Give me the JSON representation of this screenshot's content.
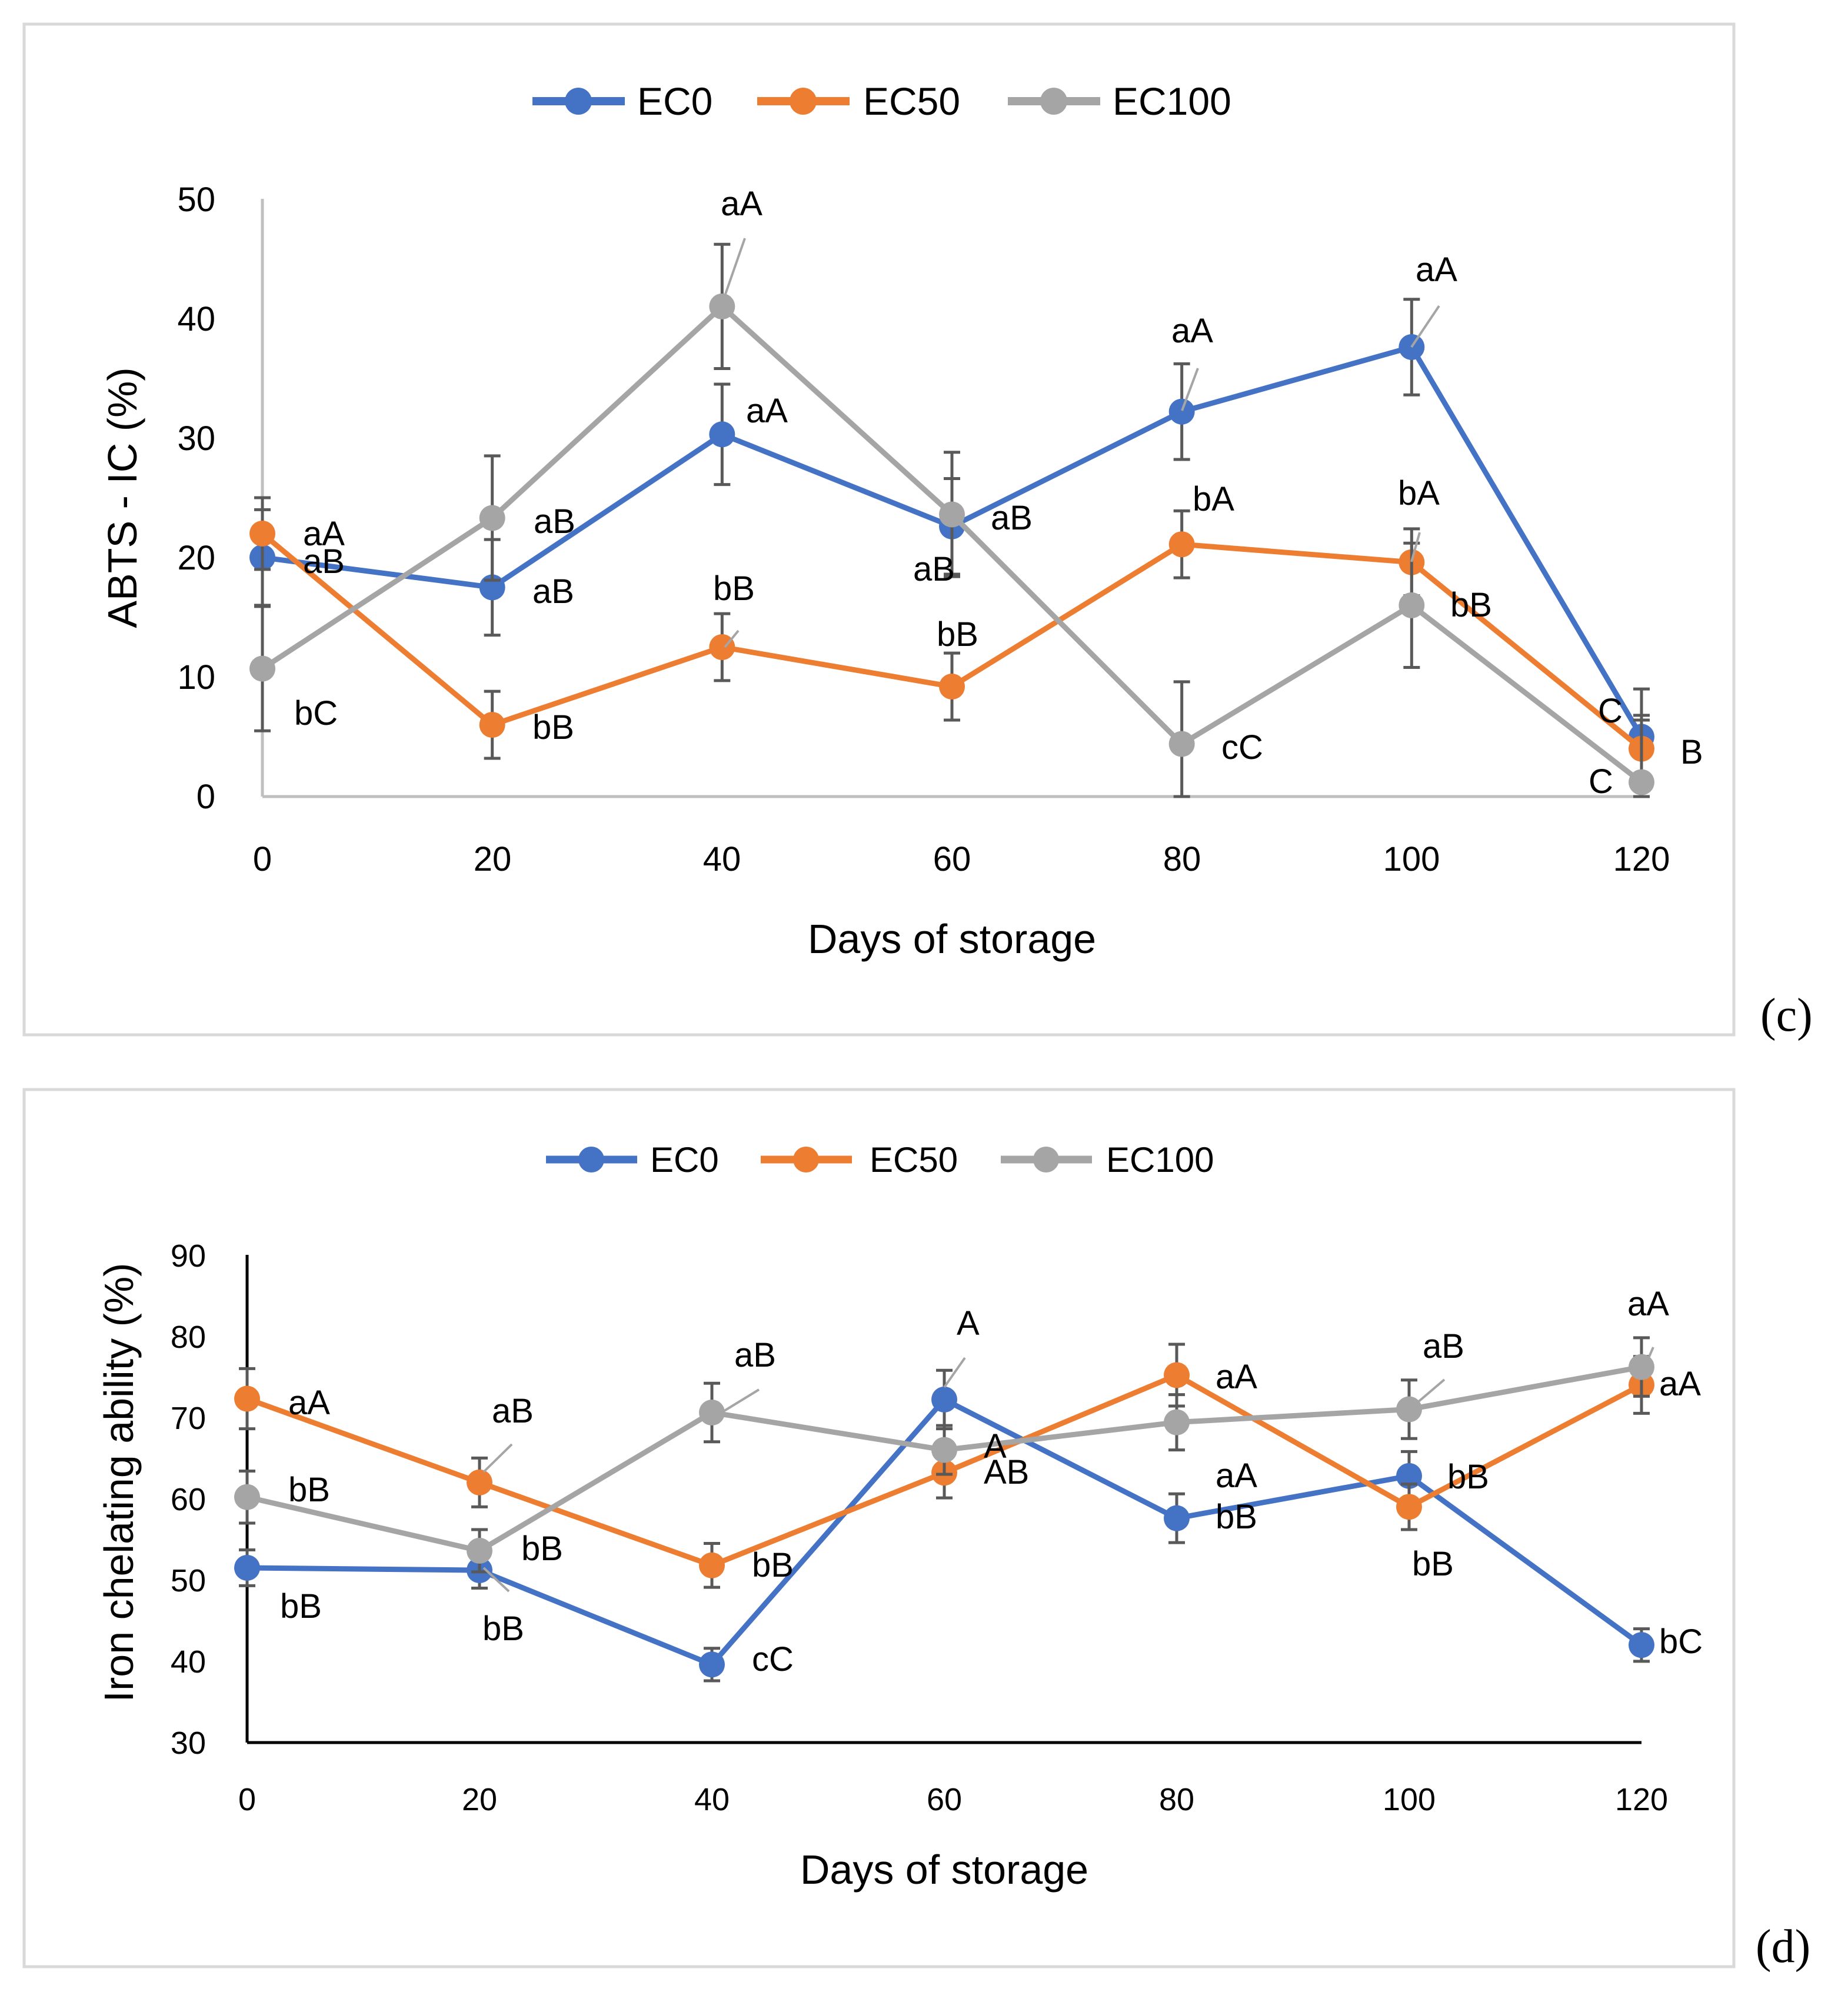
{
  "chart_data": [
    {
      "type": "line",
      "panel": "(c)",
      "xlabel": "Days of storage",
      "ylabel": "ABTS - IC (%)",
      "x": [
        0,
        20,
        40,
        60,
        80,
        100,
        120
      ],
      "ylim": [
        0,
        50
      ],
      "yticks": [
        0,
        10,
        20,
        30,
        40,
        50
      ],
      "legend_position": "top-center",
      "series": [
        {
          "name": "EC0",
          "color": "#4472c4",
          "values": [
            20.0,
            17.5,
            30.3,
            22.6,
            32.2,
            37.6,
            5.0
          ],
          "errors": [
            4.0,
            4.0,
            4.2,
            4.0,
            4.0,
            4.0,
            4.0
          ],
          "labels": [
            "aB",
            "aB",
            "aA",
            "aB",
            "aA",
            "aA",
            "C"
          ]
        },
        {
          "name": "EC50",
          "color": "#ed7d31",
          "values": [
            22.0,
            6.0,
            12.5,
            9.2,
            21.1,
            19.6,
            4.0
          ],
          "errors": [
            3.0,
            2.8,
            2.8,
            2.8,
            2.8,
            2.8,
            2.8
          ],
          "labels": [
            "aA",
            "bB",
            "bB",
            "bB",
            "bA",
            "bA",
            "B"
          ]
        },
        {
          "name": "EC100",
          "color": "#a5a5a5",
          "values": [
            10.7,
            23.3,
            41.0,
            23.6,
            4.4,
            16.0,
            1.2
          ],
          "errors": [
            5.2,
            5.2,
            5.2,
            5.2,
            5.2,
            5.2,
            5.2
          ],
          "labels": [
            "bC",
            "aB",
            "aA",
            "aB",
            "cC",
            "bB",
            "C"
          ]
        }
      ]
    },
    {
      "type": "line",
      "panel": "(d)",
      "xlabel": "Days of storage",
      "ylabel": "Iron chelating ability (%)",
      "x": [
        0,
        20,
        40,
        60,
        80,
        100,
        120
      ],
      "ylim": [
        30,
        90
      ],
      "yticks": [
        30,
        40,
        50,
        60,
        70,
        80,
        90
      ],
      "legend_position": "top-center",
      "series": [
        {
          "name": "EC0",
          "color": "#4472c4",
          "values": [
            51.5,
            51.2,
            39.6,
            72.2,
            57.6,
            62.8,
            42.0
          ],
          "errors": [
            2.2,
            2.2,
            2.0,
            3.6,
            3.0,
            3.0,
            2.0
          ],
          "labels": [
            "bB",
            "bB",
            "cC",
            "A",
            "bB",
            "bB",
            "bC"
          ]
        },
        {
          "name": "EC50",
          "color": "#ed7d31",
          "values": [
            72.3,
            62.0,
            51.8,
            63.2,
            75.2,
            59.0,
            74.0
          ],
          "errors": [
            3.7,
            3.0,
            2.7,
            3.1,
            3.8,
            2.8,
            3.5
          ],
          "labels": [
            "aA",
            "aB",
            "bB",
            "AB",
            "aA",
            "bB",
            "aA"
          ]
        },
        {
          "name": "EC100",
          "color": "#a5a5a5",
          "values": [
            60.2,
            53.6,
            70.6,
            66.0,
            69.4,
            71.0,
            76.2
          ],
          "errors": [
            3.2,
            2.6,
            3.6,
            3.0,
            3.4,
            3.6,
            3.6
          ],
          "labels": [
            "bB",
            "bB",
            "aB",
            "A",
            "aA",
            "aB",
            "aA"
          ]
        }
      ]
    }
  ]
}
